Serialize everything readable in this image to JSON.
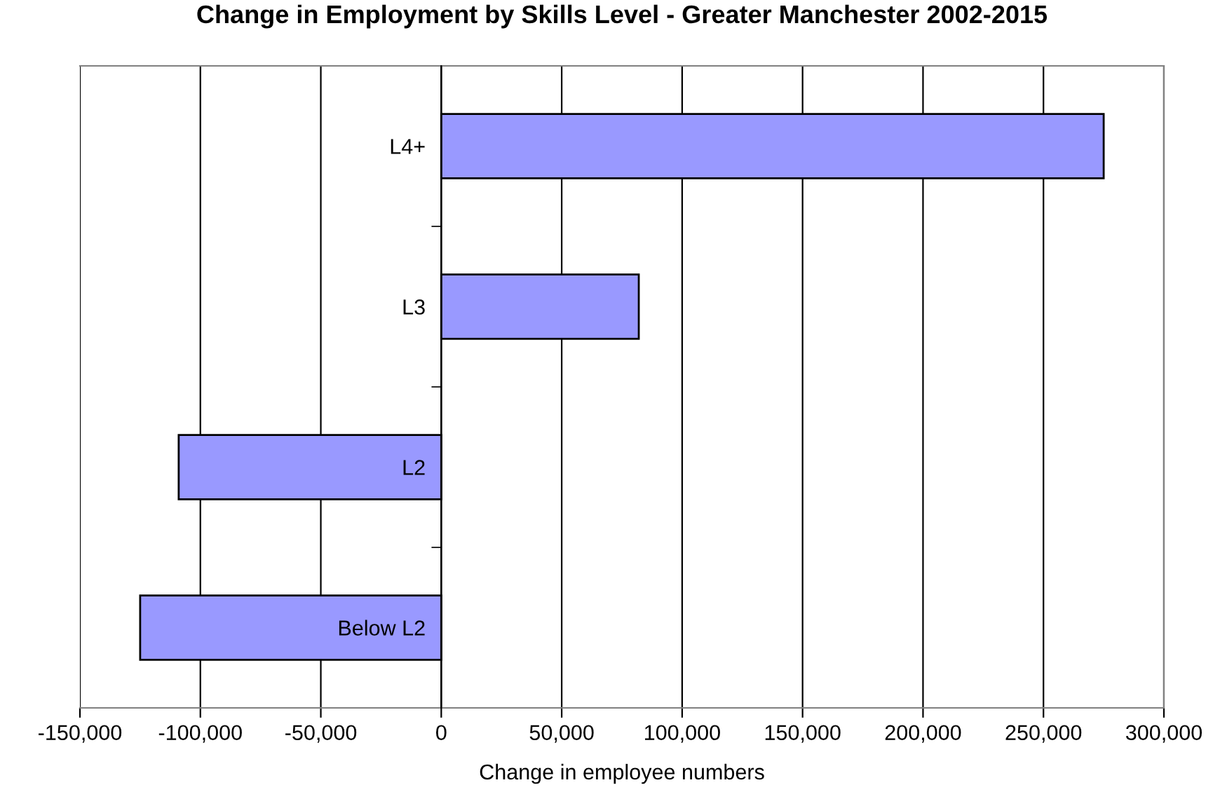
{
  "chart_data": {
    "type": "bar",
    "orientation": "horizontal",
    "title": "Change in Employment by Skills Level - Greater Manchester 2002-2015",
    "xlabel": "Change in employee numbers",
    "categories": [
      "L4+",
      "L3",
      "L2",
      "Below L2"
    ],
    "values": [
      275000,
      82000,
      -109000,
      -125000
    ],
    "color": "#9999ff",
    "xlim": [
      -150000,
      300000
    ],
    "xticks": [
      {
        "value": -150000,
        "label": "-150,000"
      },
      {
        "value": -100000,
        "label": "-100,000"
      },
      {
        "value": -50000,
        "label": "-50,000"
      },
      0,
      {
        "value": 50000,
        "label": "50,000"
      },
      {
        "value": 100000,
        "label": "100,000"
      },
      {
        "value": 150000,
        "label": "150,000"
      },
      {
        "value": 200000,
        "label": "200,000"
      },
      {
        "value": 250000,
        "label": "250,000"
      },
      {
        "value": 300000,
        "label": "300,000"
      }
    ],
    "grid": "x",
    "legend": false
  }
}
